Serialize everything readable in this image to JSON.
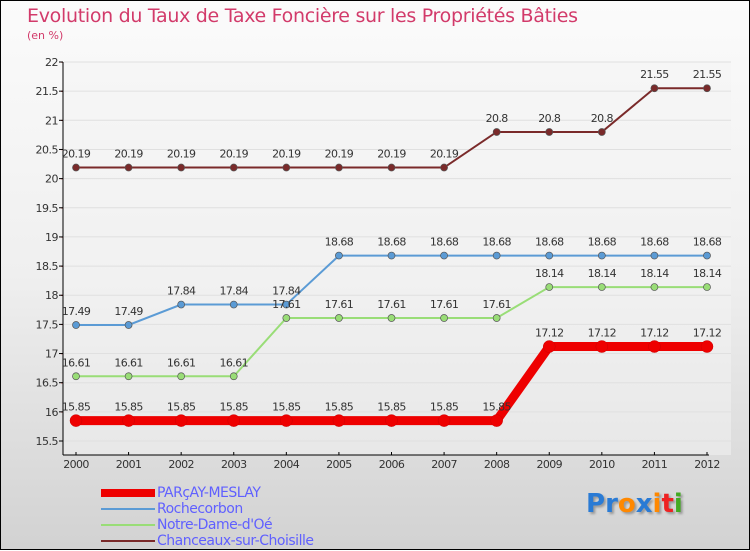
{
  "chart_data": {
    "type": "line",
    "title": "Evolution du Taux de Taxe Foncière sur les Propriétés Bâties",
    "subtitle": "(en %)",
    "xlabel": "",
    "ylabel": "",
    "x": [
      "2000",
      "2001",
      "2002",
      "2003",
      "2004",
      "2005",
      "2006",
      "2007",
      "2008",
      "2009",
      "2010",
      "2011",
      "2012"
    ],
    "ylim": [
      15.5,
      22
    ],
    "yticks": [
      "15.5",
      "16",
      "16.5",
      "17",
      "17.5",
      "18",
      "18.5",
      "19",
      "19.5",
      "20",
      "20.5",
      "21",
      "21.5",
      "22"
    ],
    "legend_position": "bottom-left",
    "series": [
      {
        "name": "Chanceaux-sur-Choisille",
        "color": "#7a2a2a",
        "values": [
          20.19,
          20.19,
          20.19,
          20.19,
          20.19,
          20.19,
          20.19,
          20.19,
          20.8,
          20.8,
          20.8,
          21.55,
          21.55
        ],
        "labels": [
          "20.19",
          "20.19",
          "20.19",
          "20.19",
          "20.19",
          "20.19",
          "20.19",
          "20.19",
          "20.8",
          "20.8",
          "20.8",
          "21.55",
          "21.55"
        ]
      },
      {
        "name": "Rochecorbon",
        "color": "#5b9bd5",
        "values": [
          17.49,
          17.49,
          17.84,
          17.84,
          17.84,
          18.68,
          18.68,
          18.68,
          18.68,
          18.68,
          18.68,
          18.68,
          18.68
        ],
        "labels": [
          "17.49",
          "17.49",
          "17.84",
          "17.84",
          "17.84",
          "18.68",
          "18.68",
          "18.68",
          "18.68",
          "18.68",
          "18.68",
          "18.68",
          "18.68"
        ]
      },
      {
        "name": "Notre-Dame-d'Oé",
        "color": "#99dd77",
        "values": [
          16.61,
          16.61,
          16.61,
          16.61,
          17.61,
          17.61,
          17.61,
          17.61,
          17.61,
          18.14,
          18.14,
          18.14,
          18.14
        ],
        "labels": [
          "16.61",
          "16.61",
          "16.61",
          "16.61",
          "17.61",
          "17.61",
          "17.61",
          "17.61",
          "17.61",
          "18.14",
          "18.14",
          "18.14",
          "18.14"
        ]
      },
      {
        "name": "PARçAY-MESLAY",
        "color": "#ee0000",
        "values": [
          15.85,
          15.85,
          15.85,
          15.85,
          15.85,
          15.85,
          15.85,
          15.85,
          15.85,
          17.12,
          17.12,
          17.12,
          17.12
        ],
        "labels": [
          "15.85",
          "15.85",
          "15.85",
          "15.85",
          "15.85",
          "15.85",
          "15.85",
          "15.85",
          "15.85",
          "17.12",
          "17.12",
          "17.12",
          "17.12"
        ]
      }
    ],
    "legend_order": [
      3,
      1,
      2,
      0
    ]
  },
  "logo": [
    "P",
    "r",
    "o",
    "x",
    "i",
    "t",
    "i"
  ],
  "logo_colors": [
    "#2a7bd5",
    "#2a7bd5",
    "#ff8800",
    "#2a7bd5",
    "#ff8800",
    "#ee2222",
    "#44aa22"
  ]
}
